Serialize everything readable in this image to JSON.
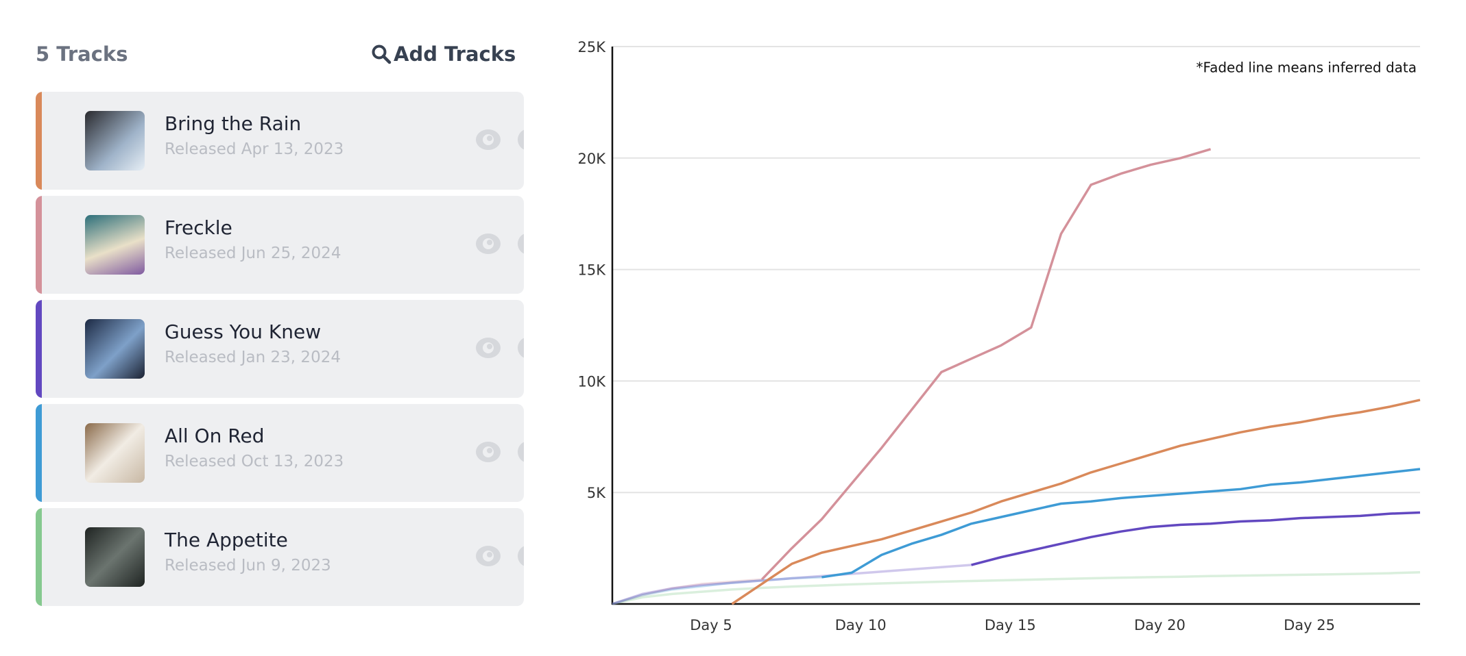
{
  "header": {
    "count": "5 Tracks",
    "action": "Add Tracks"
  },
  "tracks": [
    {
      "title": "Bring the Rain",
      "released": "Released Apr 13, 2023",
      "color": "#d9895a"
    },
    {
      "title": "Freckle",
      "released": "Released Jun 25, 2024",
      "color": "#d4919a"
    },
    {
      "title": "Guess You Knew",
      "released": "Released Jan 23, 2024",
      "color": "#6248c0"
    },
    {
      "title": "All On Red",
      "released": "Released Oct 13, 2023",
      "color": "#3e9bd5"
    },
    {
      "title": "The Appetite",
      "released": "Released Jun 9, 2023",
      "color": "#86c98f"
    }
  ],
  "chart_data": {
    "type": "line",
    "annotation": "*Faded line means inferred data",
    "x": [
      1.7,
      2.7,
      3.7,
      4.7,
      5.7,
      6.7,
      7.7,
      8.7,
      9.7,
      10.7,
      11.7,
      12.7,
      13.7,
      14.7,
      15.7,
      16.7,
      17.7,
      18.7,
      19.7,
      20.7,
      21.7,
      22.7,
      23.7,
      24.7,
      25.7,
      26.7,
      27.7,
      28.7
    ],
    "xlim": [
      1.7,
      28.7
    ],
    "xticks": [
      {
        "value": 5,
        "label": "Day 5"
      },
      {
        "value": 10,
        "label": "Day 10"
      },
      {
        "value": 15,
        "label": "Day 15"
      },
      {
        "value": 20,
        "label": "Day 20"
      },
      {
        "value": 25,
        "label": "Day 25"
      }
    ],
    "ylim": [
      0,
      25000
    ],
    "yticks": [
      {
        "value": 5000,
        "label": "5K"
      },
      {
        "value": 10000,
        "label": "10K"
      },
      {
        "value": 15000,
        "label": "15K"
      },
      {
        "value": 20000,
        "label": "20K"
      },
      {
        "value": 25000,
        "label": "25K"
      }
    ],
    "grid": true,
    "series": [
      {
        "color": "#86c98f",
        "faded": true,
        "values": [
          0,
          300,
          450,
          550,
          650,
          720,
          780,
          830,
          880,
          920,
          960,
          1000,
          1030,
          1060,
          1090,
          1120,
          1150,
          1180,
          1200,
          1220,
          1250,
          1270,
          1290,
          1310,
          1330,
          1350,
          1380,
          1420
        ]
      },
      {
        "color": "#d4919a",
        "faded": true,
        "values": [
          0,
          400,
          700,
          900,
          1000,
          1100,
          null,
          null,
          null,
          null,
          null,
          null,
          null,
          null,
          null,
          null,
          null,
          null,
          null,
          null,
          null,
          null,
          null,
          null,
          null,
          null,
          null,
          null
        ]
      },
      {
        "color": "#3e9bd5",
        "faded": true,
        "values": [
          0,
          400,
          650,
          800,
          950,
          1050,
          1150,
          1200,
          null,
          null,
          null,
          null,
          null,
          null,
          null,
          null,
          null,
          null,
          null,
          null,
          null,
          null,
          null,
          null,
          null,
          null,
          null,
          null
        ]
      },
      {
        "color": "#6248c0",
        "faded": true,
        "values": [
          0,
          450,
          700,
          850,
          950,
          1050,
          1150,
          1250,
          1350,
          1450,
          1550,
          1650,
          1750,
          null,
          null,
          null,
          null,
          null,
          null,
          null,
          null,
          null,
          null,
          null,
          null,
          null,
          null,
          null
        ]
      },
      {
        "color": "#d9895a",
        "faded": false,
        "values": [
          null,
          null,
          null,
          null,
          0,
          900,
          1800,
          2300,
          2600,
          2900,
          3300,
          3700,
          4100,
          4600,
          5000,
          5400,
          5900,
          6300,
          6700,
          7100,
          7400,
          7700,
          7950,
          8150,
          8400,
          8600,
          8850,
          9150
        ]
      },
      {
        "color": "#d4919a",
        "faded": false,
        "values": [
          null,
          null,
          null,
          null,
          null,
          1100,
          2500,
          3800,
          5400,
          7000,
          8700,
          10400,
          11000,
          11600,
          12400,
          16600,
          18800,
          19300,
          19700,
          20000,
          20400,
          null,
          null,
          null,
          null,
          null,
          null,
          null
        ]
      },
      {
        "color": "#3e9bd5",
        "faded": false,
        "values": [
          null,
          null,
          null,
          null,
          null,
          null,
          null,
          1200,
          1400,
          2200,
          2700,
          3100,
          3600,
          3900,
          4200,
          4500,
          4600,
          4750,
          4850,
          4950,
          5050,
          5150,
          5350,
          5450,
          5600,
          5750,
          5900,
          6050
        ]
      },
      {
        "color": "#6248c0",
        "faded": false,
        "values": [
          null,
          null,
          null,
          null,
          null,
          null,
          null,
          null,
          null,
          null,
          null,
          null,
          1750,
          2100,
          2400,
          2700,
          3000,
          3250,
          3450,
          3550,
          3600,
          3700,
          3750,
          3850,
          3900,
          3950,
          4050,
          4100
        ]
      }
    ]
  }
}
